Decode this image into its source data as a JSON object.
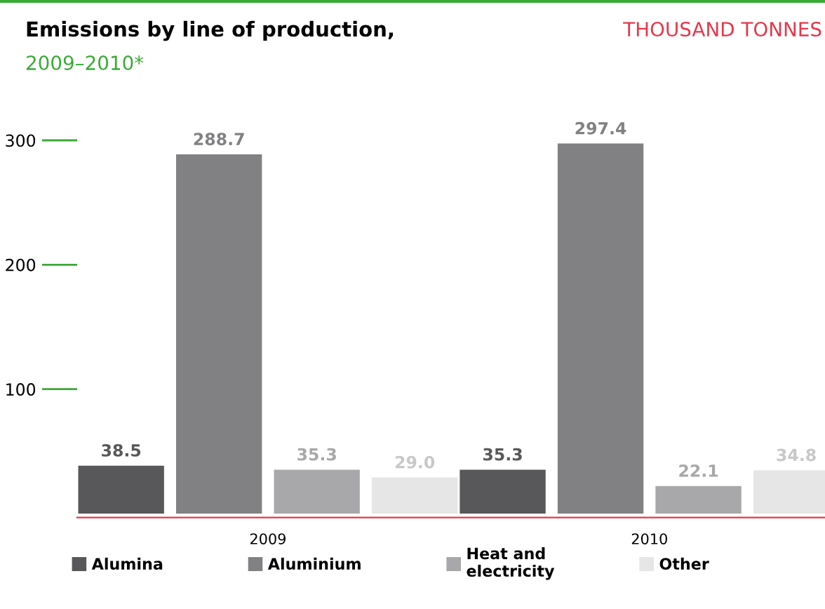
{
  "chart_data": {
    "type": "bar",
    "title": "Emissions by line of production,",
    "subtitle": "2009–2010*",
    "annotations": [
      "THOUSAND TONNES"
    ],
    "categories": [
      "2009",
      "2010"
    ],
    "series": [
      {
        "name": "Alumina",
        "color": "#58585a",
        "values": [
          38.5,
          35.3
        ]
      },
      {
        "name": "Aluminium",
        "color": "#818184",
        "values": [
          288.7,
          297.4
        ]
      },
      {
        "name": "Heat and\nelectricity",
        "color": "#a8a8ab",
        "values": [
          35.3,
          22.1
        ]
      },
      {
        "name": "Other",
        "color": "#e6e6e6",
        "values": [
          29.0,
          34.8
        ],
        "value_labels": [
          "29.0",
          "34.8"
        ]
      }
    ],
    "ylim": [
      0,
      300
    ],
    "yticks": [
      100,
      200,
      300
    ],
    "grid": false,
    "legend": "bottom",
    "data_labels": true
  }
}
